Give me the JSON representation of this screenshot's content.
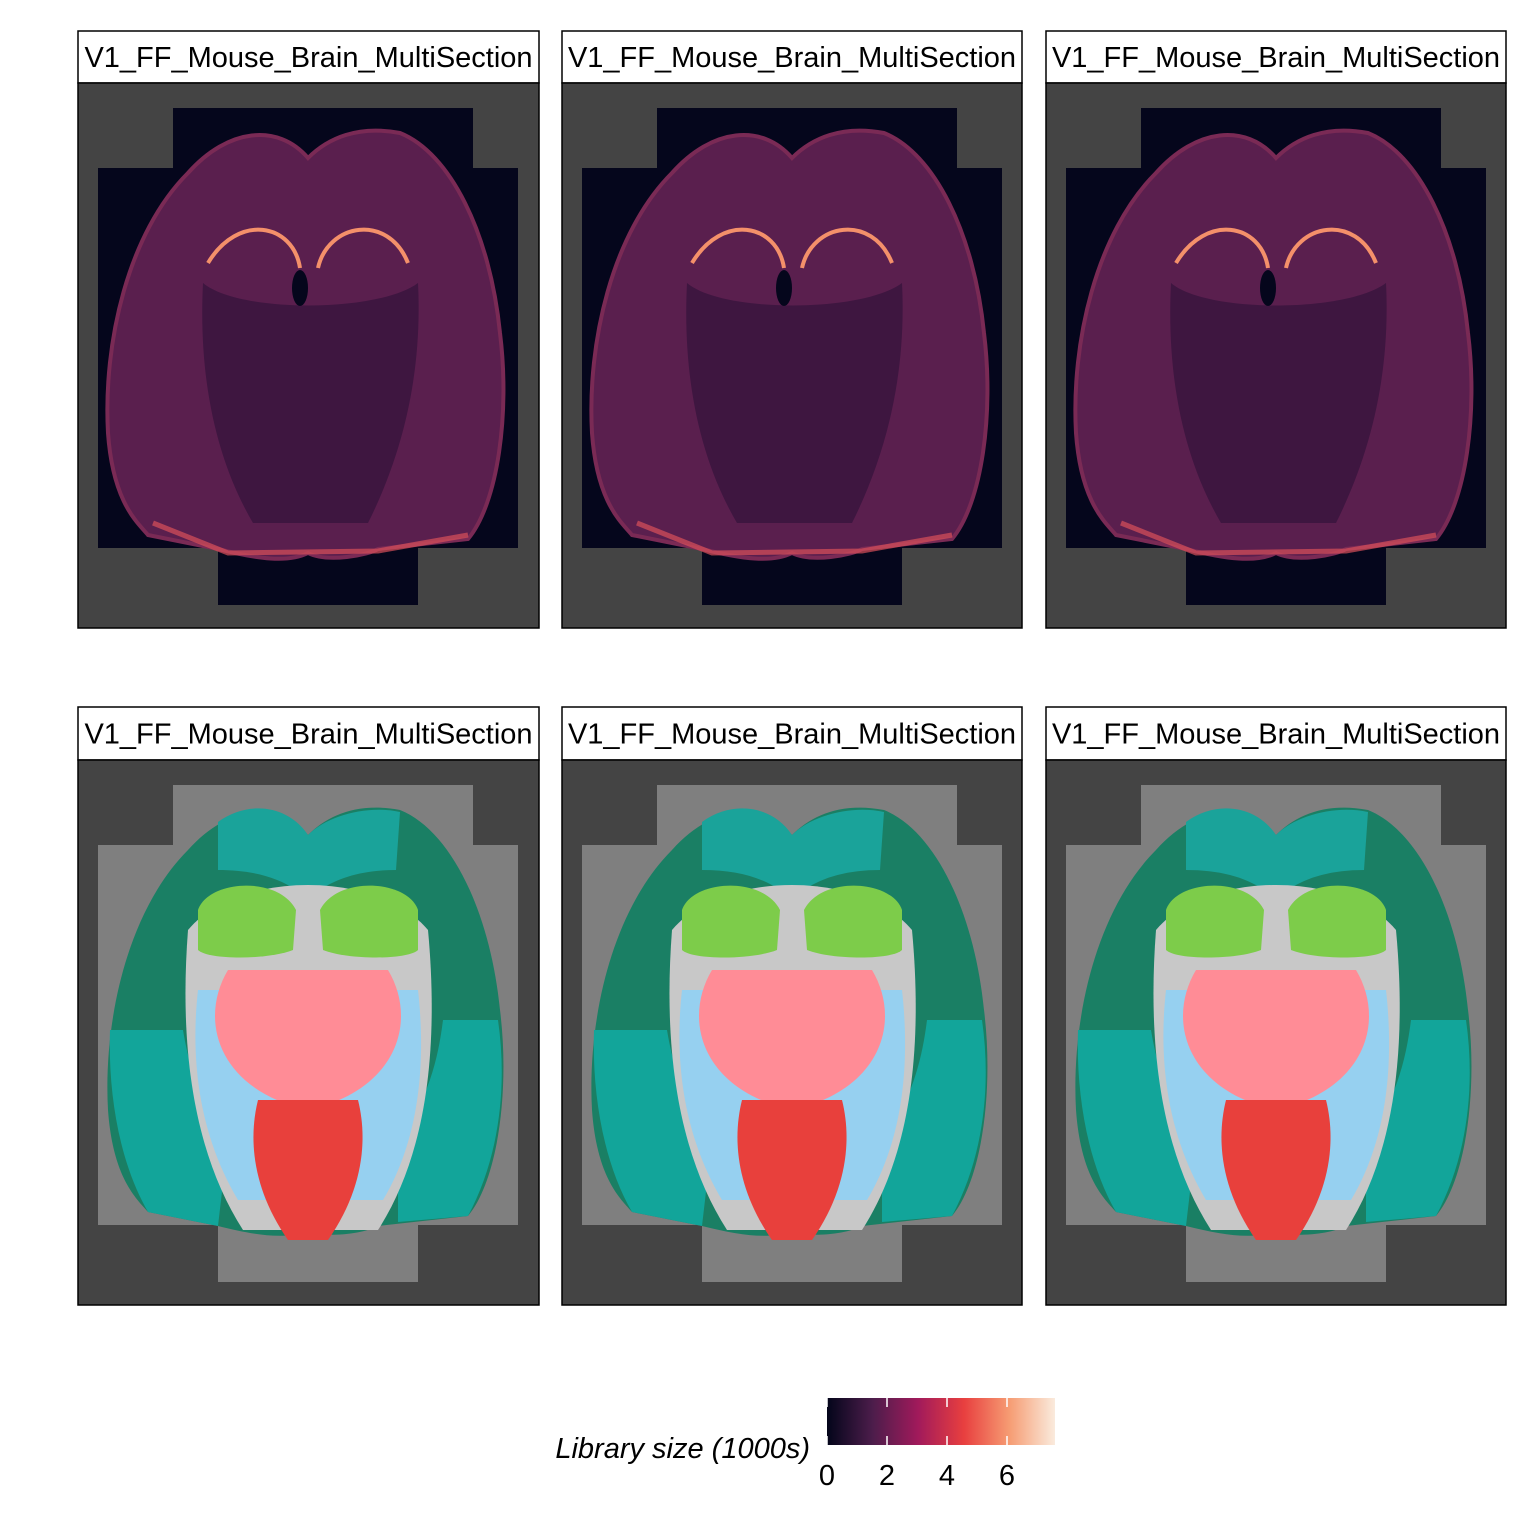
{
  "chart_data": {
    "type": "spatial",
    "panels": [
      {
        "title": "V1_FF_Mouse_Brain_MultiSection",
        "fill": "library_size"
      },
      {
        "title": "V1_FF_Mouse_Brain_MultiSection",
        "fill": "library_size"
      },
      {
        "title": "V1_FF_Mouse_Brain_MultiSection",
        "fill": "library_size"
      },
      {
        "title": "V1_FF_Mouse_Brain_MultiSection",
        "fill": "region"
      },
      {
        "title": "V1_FF_Mouse_Brain_MultiSection",
        "fill": "region"
      },
      {
        "title": "V1_FF_Mouse_Brain_MultiSection",
        "fill": "region"
      }
    ],
    "legend": {
      "title": "Library size (1000s)",
      "clim": [
        0,
        7.6
      ],
      "ticks": [
        0,
        2,
        4,
        6
      ],
      "colors": [
        "#03051a",
        "#4c1d4b",
        "#a11a5b",
        "#e83f3f",
        "#f69c73",
        "#faebdd"
      ]
    }
  }
}
